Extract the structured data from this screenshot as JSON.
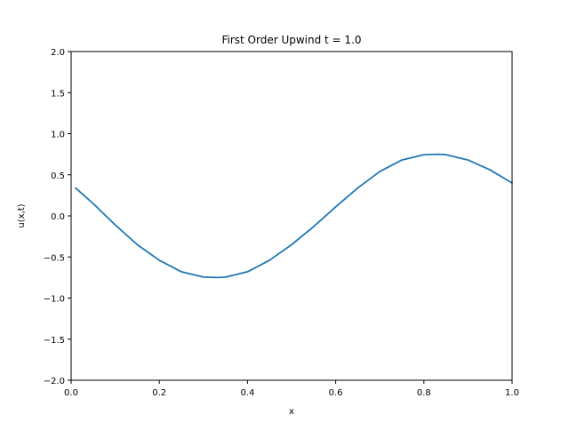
{
  "chart_data": {
    "type": "line",
    "title": "First Order Upwind t = 1.0",
    "xlabel": "x",
    "ylabel": "u(x,t)",
    "xlim": [
      0.0,
      1.0
    ],
    "ylim": [
      -2.0,
      2.0
    ],
    "grid": false,
    "legend": "none",
    "x_ticks": [
      0.0,
      0.2,
      0.4,
      0.6,
      0.8,
      1.0
    ],
    "x_tick_labels": [
      "0.0",
      "0.2",
      "0.4",
      "0.6",
      "0.8",
      "1.0"
    ],
    "y_ticks": [
      -2.0,
      -1.5,
      -1.0,
      -0.5,
      0.0,
      0.5,
      1.0,
      1.5,
      2.0
    ],
    "y_tick_labels": [
      "−2.0",
      "−1.5",
      "−1.0",
      "−0.5",
      "0.0",
      "0.5",
      "1.0",
      "1.5",
      "2.0"
    ],
    "series": [
      {
        "color": "#1f77b4",
        "x": [
          0.01,
          0.05,
          0.1,
          0.15,
          0.2,
          0.25,
          0.3,
          0.333,
          0.35,
          0.4,
          0.45,
          0.5,
          0.55,
          0.6,
          0.65,
          0.7,
          0.75,
          0.8,
          0.833,
          0.85,
          0.9,
          0.95,
          1.0
        ],
        "y": [
          0.34,
          0.15,
          -0.11,
          -0.35,
          -0.54,
          -0.68,
          -0.745,
          -0.75,
          -0.745,
          -0.68,
          -0.54,
          -0.35,
          -0.13,
          0.11,
          0.34,
          0.54,
          0.68,
          0.745,
          0.75,
          0.745,
          0.68,
          0.56,
          0.4
        ]
      }
    ]
  }
}
